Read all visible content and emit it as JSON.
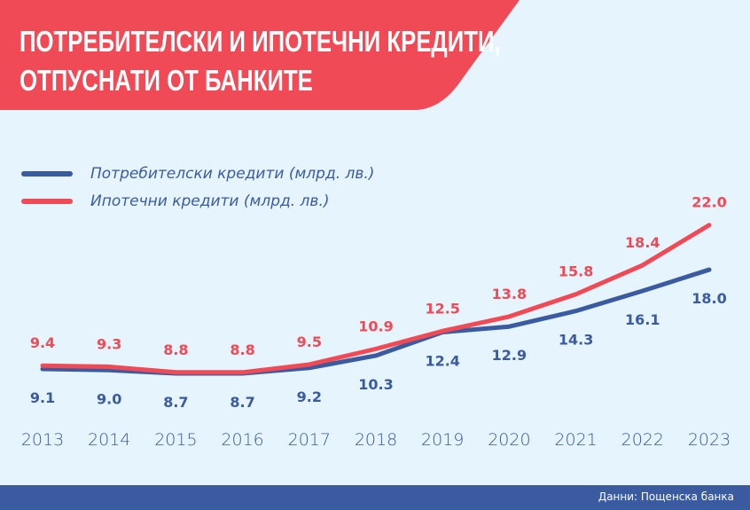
{
  "header": {
    "title_line1": "ПОТРЕБИТЕЛСКИ И ИПОТЕЧНИ КРЕДИТИ,",
    "title_line2": "ОТПУСНАТИ ОТ БАНКИТЕ"
  },
  "footer": {
    "source": "Данни: Пощенска банка"
  },
  "colors": {
    "background": "#e6f4fd",
    "red": "#ef4a55",
    "blue": "#3a5ba0"
  },
  "chart_data": {
    "type": "line",
    "title": "ПОТРЕБИТЕЛСКИ И ИПОТЕЧНИ КРЕДИТИ, ОТПУСНАТИ ОТ БАНКИТЕ",
    "x": [
      "2013",
      "2014",
      "2015",
      "2016",
      "2017",
      "2018",
      "2019",
      "2020",
      "2021",
      "2022",
      "2023"
    ],
    "series": [
      {
        "name": "Потребителски кредити (млрд. лв.)",
        "color": "#3a5ba0",
        "values": [
          9.1,
          9.0,
          8.7,
          8.7,
          9.2,
          10.3,
          12.4,
          12.9,
          14.3,
          16.1,
          18.0
        ],
        "labels": [
          "9.1",
          "9.0",
          "8.7",
          "8.7",
          "9.2",
          "10.3",
          "12.4",
          "12.9",
          "14.3",
          "16.1",
          "18.0"
        ]
      },
      {
        "name": "Ипотечни кредити (млрд. лв.)",
        "color": "#ef4a55",
        "values": [
          9.4,
          9.3,
          8.8,
          8.8,
          9.5,
          10.9,
          12.5,
          13.8,
          15.8,
          18.4,
          22.0
        ],
        "labels": [
          "9.4",
          "9.3",
          "8.8",
          "8.8",
          "9.5",
          "10.9",
          "12.5",
          "13.8",
          "15.8",
          "18.4",
          "22.0"
        ]
      }
    ],
    "legend": "top-left",
    "grid": false,
    "y_axis_visible": false
  }
}
